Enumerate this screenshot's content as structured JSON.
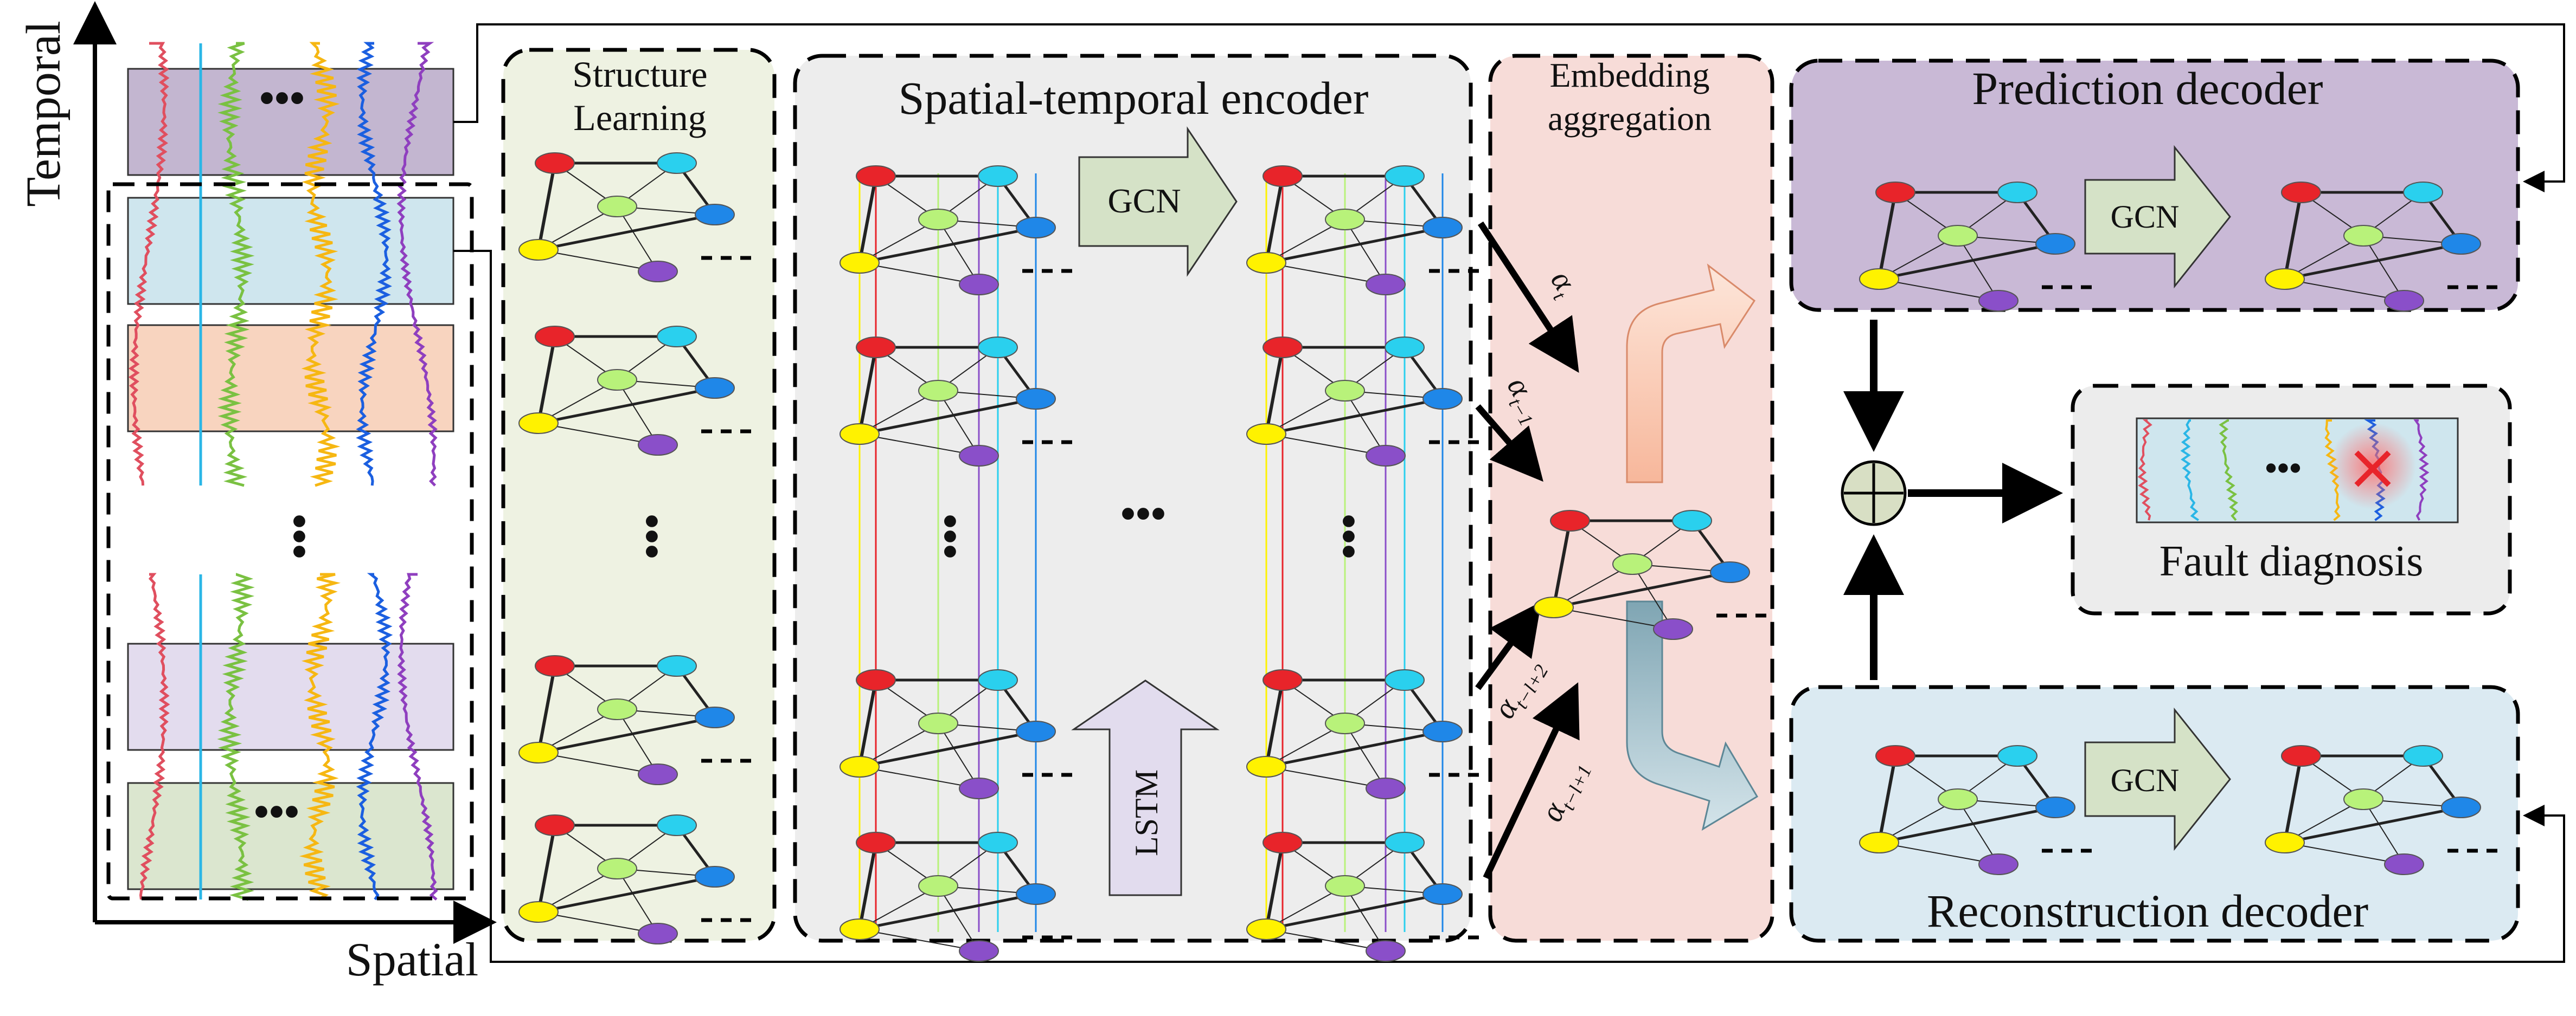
{
  "axes": {
    "temporal": "Temporal",
    "spatial": "Spatial"
  },
  "structure_learning": {
    "title_line1": "Structure",
    "title_line2": "Learning"
  },
  "encoder": {
    "title": "Spatial-temporal encoder",
    "gcn_label": "GCN",
    "lstm_label": "LSTM"
  },
  "aggregation": {
    "title_line1": "Embedding",
    "title_line2": "aggregation",
    "weights": [
      {
        "main": "α",
        "sub": "t"
      },
      {
        "main": "α",
        "sub": "t−1"
      },
      {
        "main": "α",
        "sub": "t−l+2"
      },
      {
        "main": "α",
        "sub": "t−l+1"
      }
    ]
  },
  "prediction_decoder": {
    "title": "Prediction decoder",
    "gcn_label": "GCN"
  },
  "reconstruction_decoder": {
    "title": "Reconstruction decoder",
    "gcn_label": "GCN"
  },
  "fault_diagnosis": {
    "title": "Fault diagnosis"
  },
  "ellipsis": "•••",
  "colors": {
    "node_red": "#e8242a",
    "node_cyan": "#2ad0ee",
    "node_green": "#b8f27a",
    "node_yellow": "#fff200",
    "node_purple": "#8a4fc9",
    "node_blue": "#1f87e8",
    "panel_structure": "#eef2e2",
    "panel_encoder": "#ededed",
    "panel_aggregation": "#f7dcd8",
    "panel_prediction": "#c9b9d6",
    "panel_reconstruction": "#dbeaf2",
    "panel_fault": "#ececec",
    "arrow_gcn": "#d5e2c7",
    "arrow_lstm": "#e2dcee"
  }
}
